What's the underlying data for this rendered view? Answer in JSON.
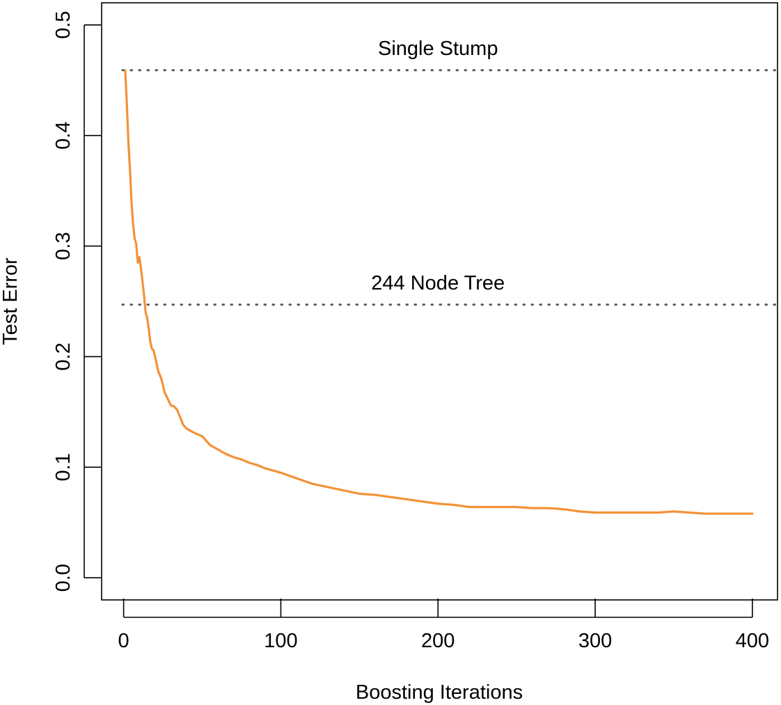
{
  "chart_data": {
    "type": "line",
    "title": "",
    "xlabel": "Boosting Iterations",
    "ylabel": "Test Error",
    "xlim": [
      -14,
      416
    ],
    "ylim": [
      -0.02,
      0.52
    ],
    "x_ticks": [
      0,
      100,
      200,
      300,
      400
    ],
    "x_tick_labels": [
      "0",
      "100",
      "200",
      "300",
      "400"
    ],
    "y_ticks": [
      0.0,
      0.1,
      0.2,
      0.3,
      0.4,
      0.5
    ],
    "y_tick_labels": [
      "0.0",
      "0.1",
      "0.2",
      "0.3",
      "0.4",
      "0.5"
    ],
    "grid": false,
    "series_color": "#f39237",
    "reference_color": "#555555",
    "reference_lines": [
      {
        "label": "Single Stump",
        "y": 0.459,
        "label_x": 200
      },
      {
        "label": "244 Node Tree",
        "y": 0.247,
        "label_x": 200
      }
    ],
    "series": [
      {
        "x": [
          1,
          2,
          3,
          4,
          5,
          6,
          7,
          8,
          9,
          10,
          11,
          12,
          13,
          14,
          15,
          16,
          17,
          18,
          19,
          20,
          22,
          24,
          26,
          28,
          30,
          32,
          34,
          36,
          38,
          40,
          45,
          50,
          55,
          60,
          65,
          70,
          75,
          80,
          85,
          90,
          95,
          100,
          110,
          120,
          130,
          140,
          150,
          160,
          170,
          180,
          190,
          200,
          210,
          220,
          230,
          240,
          250,
          260,
          270,
          280,
          290,
          300,
          310,
          320,
          330,
          340,
          350,
          360,
          370,
          380,
          390,
          400
        ],
        "values": [
          0.459,
          0.43,
          0.395,
          0.37,
          0.34,
          0.32,
          0.307,
          0.302,
          0.285,
          0.29,
          0.28,
          0.268,
          0.255,
          0.24,
          0.235,
          0.225,
          0.213,
          0.207,
          0.206,
          0.2,
          0.187,
          0.18,
          0.168,
          0.162,
          0.156,
          0.155,
          0.152,
          0.145,
          0.138,
          0.135,
          0.131,
          0.128,
          0.12,
          0.116,
          0.112,
          0.109,
          0.107,
          0.104,
          0.102,
          0.099,
          0.097,
          0.095,
          0.09,
          0.085,
          0.082,
          0.079,
          0.076,
          0.075,
          0.073,
          0.071,
          0.069,
          0.067,
          0.066,
          0.064,
          0.064,
          0.064,
          0.064,
          0.063,
          0.063,
          0.062,
          0.06,
          0.059,
          0.059,
          0.059,
          0.059,
          0.059,
          0.06,
          0.059,
          0.058,
          0.058,
          0.058,
          0.058
        ]
      }
    ]
  }
}
